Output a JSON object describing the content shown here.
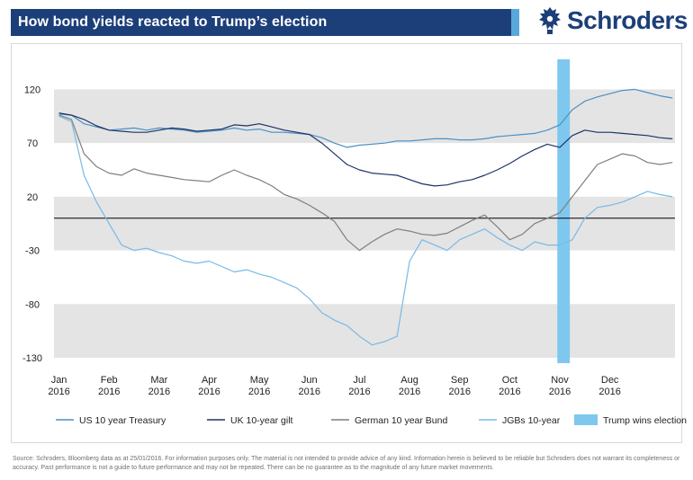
{
  "header": {
    "title": "How bond yields reacted to Trump’s election",
    "logo_text": "Schroders"
  },
  "colors": {
    "title_bar": "#1c3f7a",
    "title_accent": "#5aa7dc",
    "us": "#4a90c8",
    "uk": "#1c3466",
    "de": "#7f7f7f",
    "jgb": "#79b9e6",
    "election": "#7ec8f0",
    "band": "#e4e4e4"
  },
  "chart_data": {
    "type": "line",
    "title": "How bond yields reacted to Trump’s election",
    "ylim": [
      -135,
      148
    ],
    "yticks": [
      120,
      70,
      20,
      -30,
      -80,
      -130
    ],
    "grid": false,
    "zero_line": 0,
    "x_ticks": [
      {
        "month": "Jan",
        "year": "2016",
        "x": 0
      },
      {
        "month": "Feb",
        "year": "2016",
        "x": 1
      },
      {
        "month": "Mar",
        "year": "2016",
        "x": 2
      },
      {
        "month": "Apr",
        "year": "2016",
        "x": 3
      },
      {
        "month": "May",
        "year": "2016",
        "x": 4
      },
      {
        "month": "Jun",
        "year": "2016",
        "x": 5
      },
      {
        "month": "Jul",
        "year": "2016",
        "x": 6
      },
      {
        "month": "Aug",
        "year": "2016",
        "x": 7
      },
      {
        "month": "Sep",
        "year": "2016",
        "x": 8
      },
      {
        "month": "Oct",
        "year": "2016",
        "x": 9
      },
      {
        "month": "Nov",
        "year": "2016",
        "x": 10
      },
      {
        "month": "Dec",
        "year": "2016",
        "x": 11
      }
    ],
    "x_range": [
      -0.1,
      12.3
    ],
    "highlight": {
      "label": "Trump wins election",
      "x_start": 9.95,
      "x_end": 10.2
    },
    "legend_position": "bottom",
    "x": [
      0,
      0.25,
      0.5,
      0.75,
      1,
      1.25,
      1.5,
      1.75,
      2,
      2.25,
      2.5,
      2.75,
      3,
      3.25,
      3.5,
      3.75,
      4,
      4.25,
      4.5,
      4.75,
      5,
      5.25,
      5.5,
      5.75,
      6,
      6.25,
      6.5,
      6.75,
      7,
      7.25,
      7.5,
      7.75,
      8,
      8.25,
      8.5,
      8.75,
      9,
      9.25,
      9.5,
      9.75,
      10,
      10.25,
      10.5,
      10.75,
      11,
      11.25,
      11.5,
      11.75,
      12,
      12.25
    ],
    "series": [
      {
        "name": "US 10 year Treasury",
        "color_key": "us",
        "values": [
          97,
          96,
          88,
          85,
          82,
          83,
          84,
          82,
          84,
          83,
          82,
          80,
          81,
          82,
          84,
          82,
          83,
          80,
          80,
          79,
          78,
          75,
          70,
          66,
          68,
          69,
          70,
          72,
          72,
          73,
          74,
          74,
          73,
          73,
          74,
          76,
          77,
          78,
          79,
          82,
          87,
          101,
          109,
          113,
          116,
          119,
          120,
          117,
          114,
          112
        ]
      },
      {
        "name": "UK 10-year gilt",
        "color_key": "uk",
        "values": [
          98,
          96,
          92,
          86,
          82,
          81,
          80,
          80,
          82,
          84,
          83,
          81,
          82,
          83,
          87,
          86,
          88,
          85,
          82,
          80,
          78,
          70,
          60,
          50,
          45,
          42,
          41,
          40,
          36,
          32,
          30,
          31,
          34,
          36,
          40,
          45,
          51,
          58,
          64,
          69,
          66,
          77,
          82,
          80,
          80,
          79,
          78,
          77,
          75,
          74
        ]
      },
      {
        "name": "German 10 year Bund",
        "color_key": "de",
        "values": [
          96,
          92,
          60,
          48,
          42,
          40,
          46,
          42,
          40,
          38,
          36,
          35,
          34,
          40,
          45,
          40,
          36,
          30,
          22,
          18,
          12,
          5,
          -3,
          -20,
          -30,
          -22,
          -15,
          -10,
          -12,
          -15,
          -16,
          -14,
          -8,
          -2,
          3,
          -8,
          -20,
          -15,
          -5,
          0,
          5,
          20,
          35,
          50,
          55,
          60,
          58,
          52,
          50,
          52
        ]
      },
      {
        "name": "JGBs 10-year",
        "color_key": "jgb",
        "values": [
          95,
          90,
          40,
          15,
          -5,
          -25,
          -30,
          -28,
          -32,
          -35,
          -40,
          -42,
          -40,
          -45,
          -50,
          -48,
          -52,
          -55,
          -60,
          -65,
          -75,
          -88,
          -95,
          -100,
          -110,
          -118,
          -115,
          -110,
          -40,
          -20,
          -25,
          -30,
          -20,
          -15,
          -10,
          -18,
          -25,
          -30,
          -22,
          -25,
          -25,
          -20,
          0,
          10,
          12,
          15,
          20,
          25,
          22,
          20
        ]
      }
    ]
  },
  "legend": [
    {
      "label": "US 10 year Treasury",
      "type": "line",
      "color_key": "us"
    },
    {
      "label": "UK 10-year gilt",
      "type": "line",
      "color_key": "uk"
    },
    {
      "label": "German 10 year Bund",
      "type": "line",
      "color_key": "de"
    },
    {
      "label": "JGBs 10-year",
      "type": "line",
      "color_key": "jgb"
    },
    {
      "label": "Trump wins election",
      "type": "box",
      "color_key": "election"
    }
  ],
  "source_text": "Source: Schroders, Bloomberg data as at 25/01/2016. For information purposes only. The material is not intended to provide advice of any kind. Information herein is believed to be reliable but Schroders does not warrant its completeness or accuracy. Past performance is not a guide to future performance and may not be repeated. There can be no guarantee as to the magnitude of any future market movements."
}
